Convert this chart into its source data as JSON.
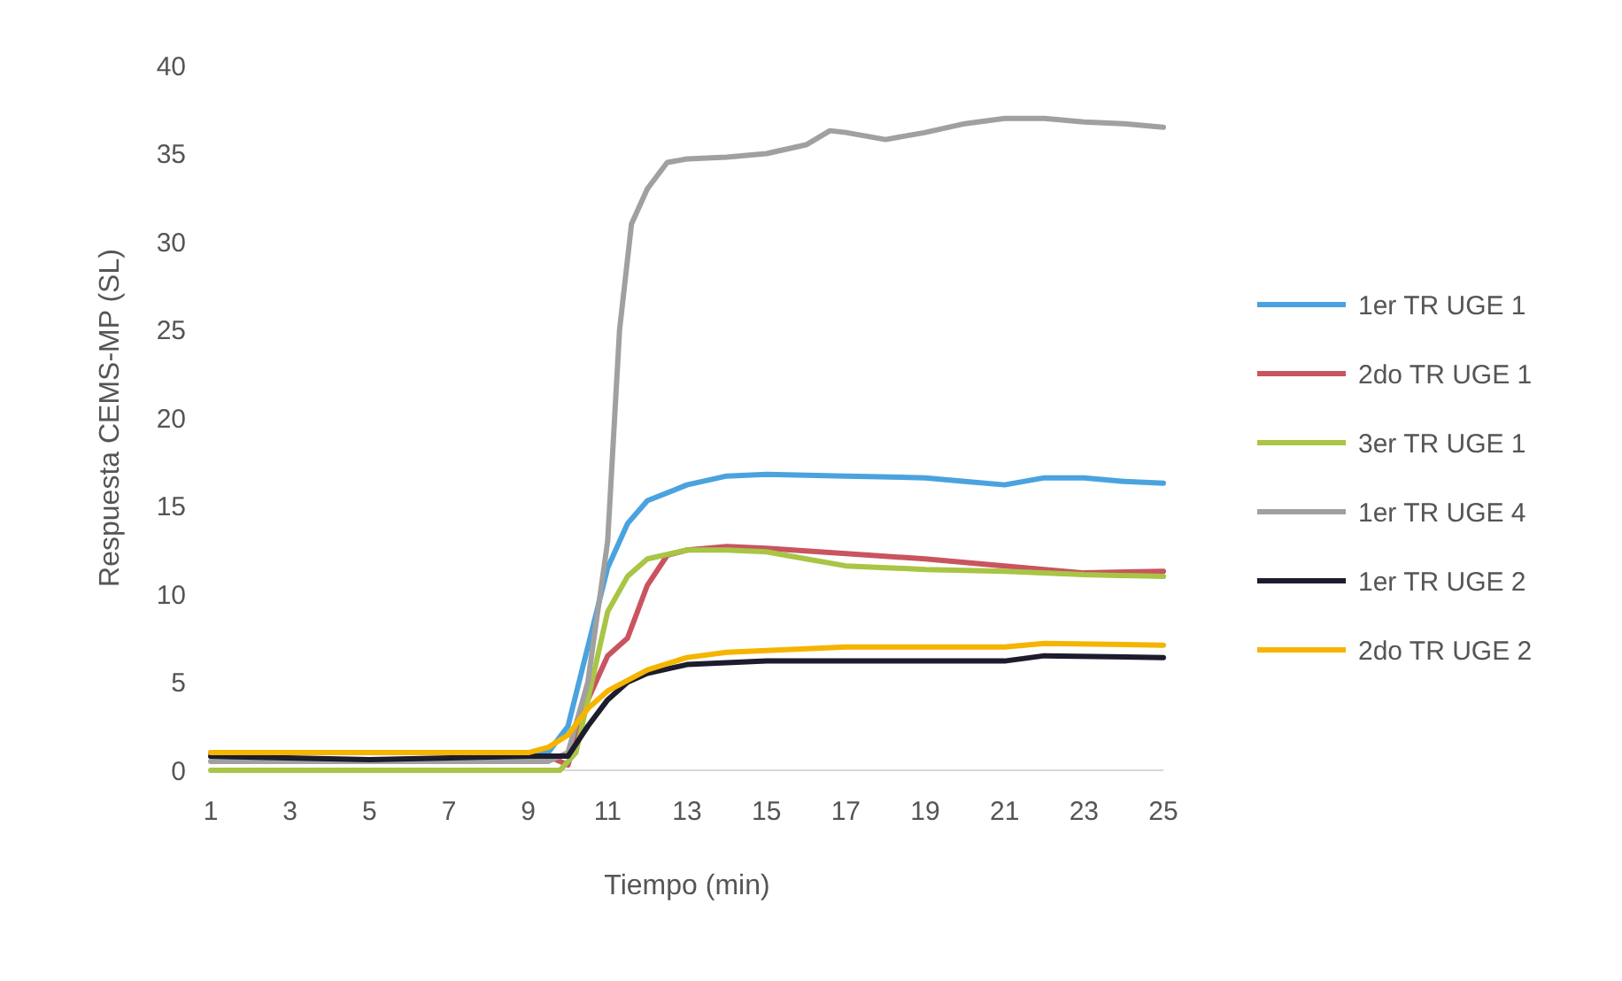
{
  "chart_data": {
    "type": "line",
    "xlabel": "Tiempo (min)",
    "ylabel": "Respuesta CEMS-MP (SL)",
    "xlim": [
      1,
      25
    ],
    "xticks": [
      1,
      3,
      5,
      7,
      9,
      11,
      13,
      15,
      17,
      19,
      21,
      23,
      25
    ],
    "ylim": [
      0,
      40
    ],
    "yticks": [
      0,
      5,
      10,
      15,
      20,
      25,
      30,
      35,
      40
    ],
    "legend": "right",
    "line_style": "solid",
    "series": [
      {
        "name": "1er TR UGE 1",
        "color": "#4aa3df",
        "x": [
          1,
          9,
          9.5,
          10,
          10.5,
          11,
          11.5,
          12,
          13,
          14,
          15,
          17,
          19,
          20,
          21,
          22,
          23,
          24,
          25
        ],
        "values": [
          1,
          1,
          1,
          2.5,
          7,
          11.5,
          14,
          15.3,
          16.2,
          16.7,
          16.8,
          16.7,
          16.6,
          16.4,
          16.2,
          16.6,
          16.6,
          16.4,
          16.3
        ]
      },
      {
        "name": "2do TR UGE 1",
        "color": "#c9545f",
        "x": [
          9,
          9.5,
          10,
          10.5,
          11,
          11.5,
          12,
          12.5,
          13,
          14,
          15,
          17,
          19,
          21,
          23,
          25
        ],
        "values": [
          0.8,
          0.8,
          0.3,
          4,
          6.5,
          7.5,
          10.5,
          12.2,
          12.5,
          12.7,
          12.6,
          12.3,
          12,
          11.6,
          11.2,
          11.3
        ]
      },
      {
        "name": "3er TR UGE 1",
        "color": "#a8c545",
        "x": [
          1,
          5,
          9,
          9.8,
          10.2,
          10.6,
          11,
          11.5,
          12,
          13,
          14,
          15,
          16,
          17,
          19,
          21,
          23,
          25
        ],
        "values": [
          0,
          0,
          0,
          0,
          1,
          5,
          9,
          11,
          12,
          12.5,
          12.5,
          12.4,
          12,
          11.6,
          11.4,
          11.3,
          11.1,
          11
        ]
      },
      {
        "name": "1er TR UGE 4",
        "color": "#a0a0a0",
        "x": [
          1,
          5,
          9,
          9.5,
          10,
          10.5,
          11,
          11.3,
          11.6,
          12,
          12.5,
          13,
          14,
          15,
          16,
          16.6,
          17,
          18,
          19,
          20,
          21,
          22,
          23,
          24,
          25
        ],
        "values": [
          0.5,
          0.5,
          0.5,
          0.5,
          1,
          5,
          13,
          25,
          31,
          33,
          34.5,
          34.7,
          34.8,
          35,
          35.5,
          36.3,
          36.2,
          35.8,
          36.2,
          36.7,
          37,
          37,
          36.8,
          36.7,
          36.5
        ]
      },
      {
        "name": "1er TR UGE 2",
        "color": "#1c1c2e",
        "x": [
          1,
          5,
          9,
          9.5,
          10,
          10.5,
          11,
          11.5,
          12,
          13,
          15,
          17,
          21,
          22,
          25
        ],
        "values": [
          0.8,
          0.6,
          0.8,
          0.8,
          0.8,
          2.5,
          4,
          5,
          5.5,
          6,
          6.2,
          6.2,
          6.2,
          6.5,
          6.4
        ]
      },
      {
        "name": "2do TR UGE 2",
        "color": "#f5b400",
        "x": [
          1,
          5,
          9,
          9.5,
          10,
          10.5,
          11,
          12,
          13,
          14,
          15,
          17,
          21,
          22,
          25
        ],
        "values": [
          1,
          1,
          1,
          1.3,
          2,
          3.5,
          4.5,
          5.7,
          6.4,
          6.7,
          6.8,
          7,
          7,
          7.2,
          7.1
        ]
      }
    ]
  }
}
